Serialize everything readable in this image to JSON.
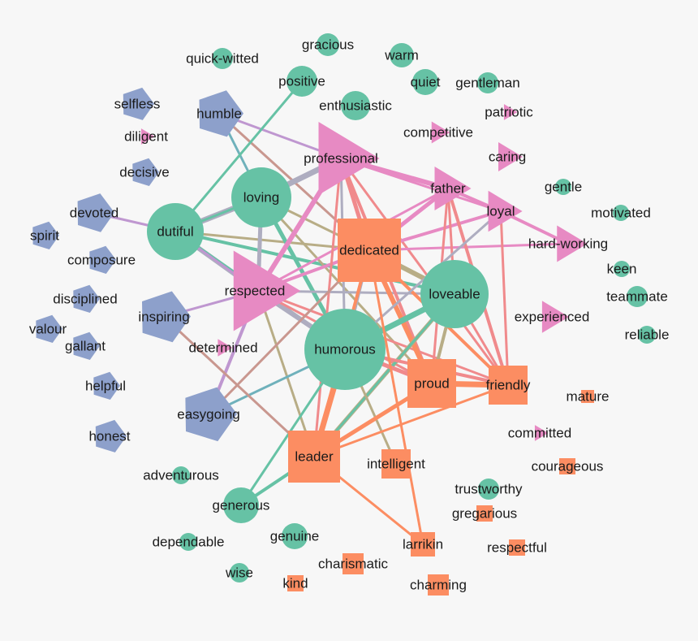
{
  "colors": {
    "circle_group": "#66c2a5",
    "square_group": "#fc8d62",
    "pentagon_group": "#8da0cb",
    "triangle_group": "#e78ac3",
    "edge_grey": "#aeadc0",
    "edge_tan": "#b8ad86",
    "edge_salmon": "#f08a8c",
    "edge_purple": "#bf97d0",
    "edge_teal": "#6fb1bb",
    "edge_brown": "#c9978f",
    "edge_green": "#66c2a5",
    "edge_pink": "#e78ac3",
    "edge_orange": "#fc8d62"
  },
  "nodes": [
    {
      "label": "quick-witted",
      "shape": "circle"
    },
    {
      "label": "gracious",
      "shape": "circle"
    },
    {
      "label": "warm",
      "shape": "circle"
    },
    {
      "label": "positive",
      "shape": "circle"
    },
    {
      "label": "quiet",
      "shape": "circle"
    },
    {
      "label": "enthusiastic",
      "shape": "circle"
    },
    {
      "label": "gentleman",
      "shape": "circle"
    },
    {
      "label": "loving",
      "shape": "circle"
    },
    {
      "label": "dutiful",
      "shape": "circle"
    },
    {
      "label": "loveable",
      "shape": "circle"
    },
    {
      "label": "humorous",
      "shape": "circle"
    },
    {
      "label": "gentle",
      "shape": "circle"
    },
    {
      "label": "motivated",
      "shape": "circle"
    },
    {
      "label": "keen",
      "shape": "circle"
    },
    {
      "label": "teammate",
      "shape": "circle"
    },
    {
      "label": "reliable",
      "shape": "circle"
    },
    {
      "label": "trustworthy",
      "shape": "circle"
    },
    {
      "label": "adventurous",
      "shape": "circle"
    },
    {
      "label": "generous",
      "shape": "circle"
    },
    {
      "label": "dependable",
      "shape": "circle"
    },
    {
      "label": "genuine",
      "shape": "circle"
    },
    {
      "label": "wise",
      "shape": "circle"
    },
    {
      "label": "professional",
      "shape": "triangle"
    },
    {
      "label": "father",
      "shape": "triangle"
    },
    {
      "label": "loyal",
      "shape": "triangle"
    },
    {
      "label": "hard-working",
      "shape": "triangle"
    },
    {
      "label": "respected",
      "shape": "triangle"
    },
    {
      "label": "competitive",
      "shape": "triangle"
    },
    {
      "label": "patriotic",
      "shape": "triangle"
    },
    {
      "label": "caring",
      "shape": "triangle"
    },
    {
      "label": "diligent",
      "shape": "triangle"
    },
    {
      "label": "determined",
      "shape": "triangle"
    },
    {
      "label": "experienced",
      "shape": "triangle"
    },
    {
      "label": "committed",
      "shape": "triangle"
    },
    {
      "label": "selfless",
      "shape": "pentagon"
    },
    {
      "label": "humble",
      "shape": "pentagon"
    },
    {
      "label": "decisive",
      "shape": "pentagon"
    },
    {
      "label": "devoted",
      "shape": "pentagon"
    },
    {
      "label": "spirit",
      "shape": "pentagon"
    },
    {
      "label": "composure",
      "shape": "pentagon"
    },
    {
      "label": "disciplined",
      "shape": "pentagon"
    },
    {
      "label": "valour",
      "shape": "pentagon"
    },
    {
      "label": "gallant",
      "shape": "pentagon"
    },
    {
      "label": "inspiring",
      "shape": "pentagon"
    },
    {
      "label": "helpful",
      "shape": "pentagon"
    },
    {
      "label": "honest",
      "shape": "pentagon"
    },
    {
      "label": "easygoing",
      "shape": "pentagon"
    },
    {
      "label": "dedicated",
      "shape": "square"
    },
    {
      "label": "proud",
      "shape": "square"
    },
    {
      "label": "friendly",
      "shape": "square"
    },
    {
      "label": "leader",
      "shape": "square"
    },
    {
      "label": "intelligent",
      "shape": "square"
    },
    {
      "label": "larrikin",
      "shape": "square"
    },
    {
      "label": "charismatic",
      "shape": "square"
    },
    {
      "label": "kind",
      "shape": "square"
    },
    {
      "label": "charming",
      "shape": "square"
    },
    {
      "label": "courageous",
      "shape": "square"
    },
    {
      "label": "gregarious",
      "shape": "square"
    },
    {
      "label": "respectful",
      "shape": "square"
    },
    {
      "label": "mature",
      "shape": "square"
    }
  ],
  "edges": [
    [
      "humble",
      "professional",
      "edge_purple",
      3
    ],
    [
      "humble",
      "loving",
      "edge_teal",
      3
    ],
    [
      "humble",
      "dedicated",
      "edge_brown",
      3
    ],
    [
      "positive",
      "dutiful",
      "edge_green",
      3
    ],
    [
      "devoted",
      "dutiful",
      "edge_purple",
      3
    ],
    [
      "dutiful",
      "loving",
      "edge_grey",
      7
    ],
    [
      "dutiful",
      "loving",
      "edge_green",
      3
    ],
    [
      "dutiful",
      "dedicated",
      "edge_tan",
      3
    ],
    [
      "dutiful",
      "loveable",
      "edge_green",
      4
    ],
    [
      "dutiful",
      "respected",
      "edge_grey",
      6
    ],
    [
      "dutiful",
      "humorous",
      "edge_green",
      4
    ],
    [
      "dutiful",
      "respected",
      "edge_purple",
      3
    ],
    [
      "loving",
      "professional",
      "edge_grey",
      7
    ],
    [
      "loving",
      "dedicated",
      "edge_tan",
      3
    ],
    [
      "loving",
      "respected",
      "edge_grey",
      5
    ],
    [
      "loving",
      "humorous",
      "edge_green",
      5
    ],
    [
      "loving",
      "proud",
      "edge_tan",
      3
    ],
    [
      "respected",
      "professional",
      "edge_pink",
      6
    ],
    [
      "respected",
      "dedicated",
      "edge_pink",
      4
    ],
    [
      "respected",
      "loveable",
      "edge_grey",
      3
    ],
    [
      "respected",
      "humorous",
      "edge_grey",
      6
    ],
    [
      "respected",
      "father",
      "edge_pink",
      3
    ],
    [
      "respected",
      "proud",
      "edge_salmon",
      3
    ],
    [
      "respected",
      "friendly",
      "edge_salmon",
      3
    ],
    [
      "respected",
      "leader",
      "edge_tan",
      3
    ],
    [
      "professional",
      "father",
      "edge_pink",
      6
    ],
    [
      "professional",
      "loyal",
      "edge_pink",
      3
    ],
    [
      "professional",
      "dedicated",
      "edge_salmon",
      5
    ],
    [
      "professional",
      "humorous",
      "edge_grey",
      3
    ],
    [
      "professional",
      "proud",
      "edge_salmon",
      4
    ],
    [
      "professional",
      "friendly",
      "edge_salmon",
      3
    ],
    [
      "professional",
      "leader",
      "edge_salmon",
      3
    ],
    [
      "dedicated",
      "father",
      "edge_pink",
      5
    ],
    [
      "dedicated",
      "loyal",
      "edge_pink",
      4
    ],
    [
      "dedicated",
      "hard-working",
      "edge_pink",
      3
    ],
    [
      "dedicated",
      "loveable",
      "edge_tan",
      6
    ],
    [
      "dedicated",
      "humorous",
      "edge_grey",
      4
    ],
    [
      "dedicated",
      "proud",
      "edge_orange",
      6
    ],
    [
      "dedicated",
      "friendly",
      "edge_orange",
      4
    ],
    [
      "dedicated",
      "leader",
      "edge_orange",
      4
    ],
    [
      "father",
      "loyal",
      "edge_pink",
      4
    ],
    [
      "loyal",
      "hard-working",
      "edge_pink",
      4
    ],
    [
      "father",
      "loveable",
      "edge_salmon",
      3
    ],
    [
      "father",
      "friendly",
      "edge_salmon",
      4
    ],
    [
      "father",
      "proud",
      "edge_salmon",
      3
    ],
    [
      "loyal",
      "humorous",
      "edge_grey",
      3
    ],
    [
      "loyal",
      "friendly",
      "edge_salmon",
      3
    ],
    [
      "loveable",
      "humorous",
      "edge_green",
      7
    ],
    [
      "loveable",
      "proud",
      "edge_tan",
      4
    ],
    [
      "loveable",
      "friendly",
      "edge_salmon",
      3
    ],
    [
      "loveable",
      "leader",
      "edge_tan",
      5
    ],
    [
      "loveable",
      "leader",
      "edge_green",
      3
    ],
    [
      "humorous",
      "proud",
      "edge_salmon",
      5
    ],
    [
      "humorous",
      "friendly",
      "edge_salmon",
      4
    ],
    [
      "humorous",
      "leader",
      "edge_orange",
      7
    ],
    [
      "humorous",
      "intelligent",
      "edge_tan",
      3
    ],
    [
      "humorous",
      "easygoing",
      "edge_teal",
      3
    ],
    [
      "humorous",
      "generous",
      "edge_green",
      3
    ],
    [
      "inspiring",
      "respected",
      "edge_purple",
      3
    ],
    [
      "easygoing",
      "respected",
      "edge_purple",
      4
    ],
    [
      "easygoing",
      "dedicated",
      "edge_brown",
      3
    ],
    [
      "inspiring",
      "leader",
      "edge_brown",
      3
    ],
    [
      "proud",
      "friendly",
      "edge_orange",
      7
    ],
    [
      "proud",
      "leader",
      "edge_orange",
      5
    ],
    [
      "friendly",
      "leader",
      "edge_orange",
      3
    ],
    [
      "leader",
      "larrikin",
      "edge_orange",
      3
    ],
    [
      "leader",
      "generous",
      "edge_green",
      4
    ],
    [
      "dedicated",
      "larrikin",
      "edge_orange",
      3
    ]
  ]
}
